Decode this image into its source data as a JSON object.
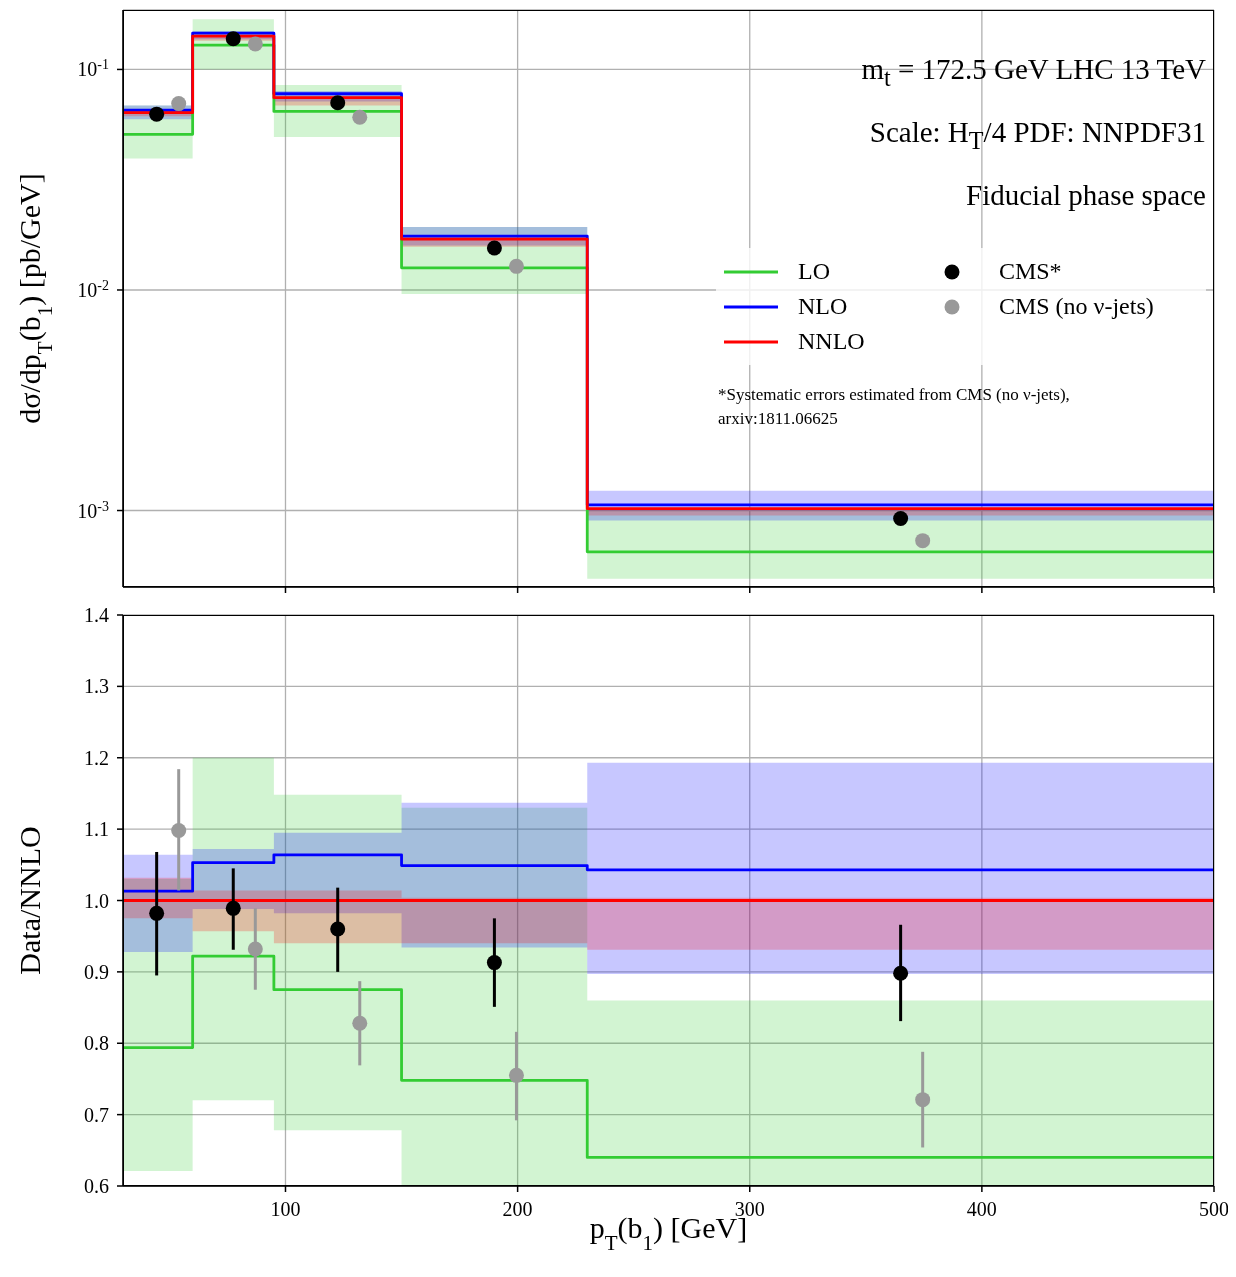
{
  "chart_data": [
    {
      "type": "step",
      "ylabel": "dσ/dp$_{T}$(b$_{1}$) [pb/GeV]",
      "annotations": [
        "m$_{t}$ = 172.5 GeV LHC 13 TeV",
        "Scale: H$_{T}$/4 PDF: NNPDF31",
        "Fiducial phase space",
        "*Systematic errors estimated from CMS (no ν-jets), arxiv:1811.06625"
      ],
      "xlim": [
        30,
        500
      ],
      "xticks": [
        100,
        200,
        300,
        400,
        500
      ],
      "ylim": [
        0.00045,
        0.186
      ],
      "yticks": [
        {
          "value": 0.001,
          "label": "10$^{-3}$"
        },
        {
          "value": 0.01,
          "label": "10$^{-2}$"
        },
        {
          "value": 0.1,
          "label": "10$^{-1}$"
        }
      ],
      "log": "y",
      "grid": true,
      "legend": "right",
      "tick_labels": "y",
      "series": [
        {
          "name": "LO",
          "color": "#33cc33",
          "x": [
            30,
            60,
            95,
            150,
            230,
            500
          ],
          "values": [
            0.0508,
            0.129,
            0.0645,
            0.0126,
            0.00065,
            0.00065
          ],
          "lower": [
            0.0395,
            0.1,
            0.0494,
            0.0096,
            0.00049,
            0.00049
          ],
          "upper": [
            0.0686,
            0.169,
            0.0849,
            0.0193,
            0.001,
            0.001
          ]
        },
        {
          "name": "NLO",
          "color": "#0000ff",
          "x": [
            30,
            60,
            95,
            150,
            230,
            500
          ],
          "values": [
            0.0653,
            0.146,
            0.0776,
            0.01753,
            0.00106,
            0.00106
          ],
          "lower": [
            0.0594,
            0.137,
            0.0715,
            0.0159,
            0.0009,
            0.0009
          ],
          "upper": [
            0.0686,
            0.149,
            0.0798,
            0.0193,
            0.00123,
            0.00123
          ]
        },
        {
          "name": "NNLO",
          "color": "#ff0000",
          "x": [
            30,
            60,
            95,
            150,
            230,
            500
          ],
          "values": [
            0.0637,
            0.1416,
            0.0745,
            0.017,
            0.00102,
            0.00102
          ],
          "lower": [
            0.0614,
            0.135,
            0.0686,
            0.0157,
            0.00095,
            0.00095
          ],
          "upper": [
            0.065,
            0.143,
            0.076,
            0.0175,
            0.00103,
            0.00103
          ]
        },
        {
          "name": "CMS*",
          "type": "scatter",
          "marker": "circle",
          "color": "#000000",
          "x": [
            44.5,
            77.5,
            122.5,
            190,
            365
          ],
          "values": [
            0.0627,
            0.1377,
            0.0706,
            0.0155,
            0.00092
          ]
        },
        {
          "name": "CMS (no ν-jets)",
          "type": "scatter",
          "marker": "circle",
          "color": "#999999",
          "x": [
            54,
            87,
            132,
            199.5,
            374.5
          ],
          "values": [
            0.07,
            0.1305,
            0.0607,
            0.0128,
            0.00073
          ]
        }
      ]
    },
    {
      "type": "step",
      "xlabel": "p$_{T}$(b$_{1}$) [GeV]",
      "ylabel": "Data/NNLO",
      "xlim": [
        30,
        500
      ],
      "xticks": [
        100,
        200,
        300,
        400,
        500
      ],
      "ylim": [
        0.6,
        1.4
      ],
      "yticks": [
        0.6,
        0.7,
        0.8,
        0.9,
        {
          "value": 1,
          "label": "1.0"
        },
        1.1,
        1.2,
        1.3,
        1.4
      ],
      "grid": true,
      "series": [
        {
          "color": "#33cc33",
          "x": [
            30,
            60,
            95,
            150,
            230,
            500
          ],
          "values": [
            0.794,
            0.922,
            0.875,
            0.748,
            0.64,
            0.64
          ],
          "lower": [
            0.621,
            0.72,
            0.678,
            0.6,
            0.6,
            0.6
          ],
          "upper": [
            1.03,
            1.2,
            1.148,
            1.13,
            0.86,
            0.86
          ]
        },
        {
          "color": "#0000ff",
          "x": [
            30,
            60,
            95,
            150,
            230,
            500
          ],
          "values": [
            1.013,
            1.053,
            1.064,
            1.049,
            1.043,
            1.043
          ],
          "lower": [
            0.928,
            0.988,
            0.982,
            0.934,
            0.897,
            0.897
          ],
          "upper": [
            1.064,
            1.072,
            1.095,
            1.137,
            1.193,
            1.193
          ]
        },
        {
          "color": "#ff0000",
          "x": [
            30,
            60,
            95,
            150,
            230,
            500
          ],
          "values": [
            1,
            1,
            1,
            1,
            1,
            1
          ],
          "lower": [
            0.975,
            0.957,
            0.94,
            0.94,
            0.931,
            0.931
          ],
          "upper": [
            1.032,
            1.014,
            1.014,
            1.004,
            1.004,
            1.004
          ]
        },
        {
          "type": "scatter",
          "marker": "circle",
          "color": "#000000",
          "x": [
            44.5,
            77.5,
            122.5,
            190,
            365
          ],
          "values": [
            0.982,
            0.989,
            0.96,
            0.913,
            0.898
          ],
          "errors": [
            [
              0.895,
              1.068
            ],
            [
              0.931,
              1.045
            ],
            [
              0.9,
              1.018
            ],
            [
              0.851,
              0.975
            ],
            [
              0.831,
              0.966
            ]
          ]
        },
        {
          "type": "scatter",
          "marker": "circle",
          "color": "#999999",
          "x": [
            54,
            87,
            132,
            199.5,
            374.5
          ],
          "values": [
            1.098,
            0.932,
            0.828,
            0.755,
            0.721
          ],
          "errors": [
            [
              1.014,
              1.184
            ],
            [
              0.875,
              0.989
            ],
            [
              0.769,
              0.887
            ],
            [
              0.692,
              0.816
            ],
            [
              0.654,
              0.788
            ]
          ]
        }
      ]
    }
  ]
}
